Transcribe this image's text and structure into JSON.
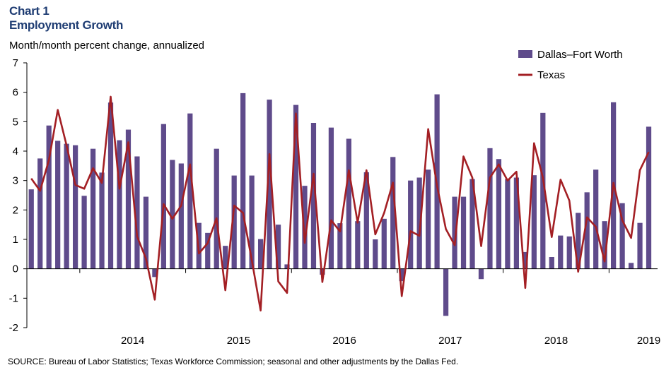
{
  "header": {
    "chart_label": "Chart 1",
    "title": "Employment Growth",
    "subtitle": "Month/month  percent change, annualized"
  },
  "source": "SOURCE: Bureau of Labor Statistics; Texas Workforce Commission; seasonal and other adjustments by the Dallas Fed.",
  "colors": {
    "bar": "#5f4b8b",
    "line": "#a31f24",
    "axis": "#000000"
  },
  "chart_data": {
    "type": "bar",
    "ylim": [
      -2,
      7
    ],
    "yticks": [
      -2,
      -1,
      0,
      1,
      2,
      3,
      4,
      5,
      6,
      7
    ],
    "year_labels": [
      "2014",
      "2015",
      "2016",
      "2017",
      "2018",
      "2019"
    ],
    "x_start": "2013-07",
    "legend_position": "top-right",
    "series": [
      {
        "name": "Dallas–Fort Worth",
        "type": "bar",
        "values": [
          2.7,
          3.75,
          4.87,
          4.35,
          4.25,
          4.2,
          2.48,
          4.08,
          3.27,
          5.65,
          4.37,
          4.73,
          3.82,
          2.45,
          -0.28,
          4.92,
          3.7,
          3.58,
          5.28,
          1.56,
          1.22,
          4.08,
          0.78,
          3.17,
          5.97,
          3.17,
          1.01,
          5.75,
          1.5,
          0.15,
          5.57,
          2.82,
          4.96,
          -0.2,
          4.8,
          1.55,
          4.42,
          1.62,
          3.28,
          1.0,
          1.7,
          3.8,
          -0.42,
          3.0,
          3.1,
          3.37,
          5.93,
          -1.6,
          2.45,
          2.45,
          3.05,
          -0.35,
          4.1,
          3.73,
          3.05,
          3.1,
          0.57,
          3.18,
          5.3,
          0.4,
          1.13,
          1.1,
          1.9,
          2.6,
          3.37,
          1.62,
          5.66,
          2.23,
          0.2,
          1.56,
          4.83
        ]
      },
      {
        "name": "Texas",
        "type": "line",
        "values": [
          3.07,
          2.65,
          3.7,
          5.4,
          4.2,
          2.85,
          2.72,
          3.42,
          2.92,
          5.85,
          2.72,
          4.3,
          1.1,
          0.35,
          -1.05,
          2.2,
          1.7,
          2.15,
          3.55,
          0.52,
          0.87,
          1.72,
          -0.73,
          2.15,
          1.9,
          0.3,
          -1.42,
          3.9,
          -0.43,
          -0.82,
          5.28,
          0.88,
          3.23,
          -0.45,
          1.65,
          1.27,
          3.35,
          1.57,
          3.35,
          1.17,
          1.9,
          2.93,
          -0.93,
          1.28,
          1.12,
          4.75,
          2.82,
          1.35,
          0.8,
          3.82,
          3.1,
          0.77,
          3.1,
          3.55,
          3.0,
          3.3,
          -0.65,
          4.27,
          3.1,
          1.08,
          3.03,
          2.32,
          -0.1,
          1.75,
          1.43,
          0.25,
          2.92,
          1.65,
          1.05,
          3.35,
          3.97
        ]
      }
    ]
  }
}
